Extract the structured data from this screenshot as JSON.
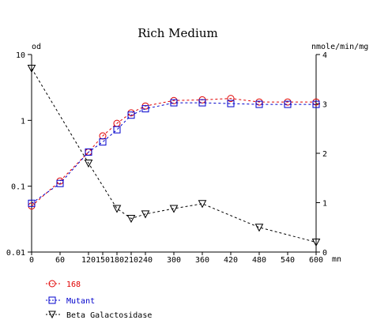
{
  "chart_data": {
    "type": "line",
    "title": "Rich Medium",
    "left_axis_unit": "od",
    "right_axis_unit": "nmole/min/mg",
    "x_unit": "mn",
    "x_ticks": [
      "0",
      "60",
      "120",
      "150",
      "180",
      "210",
      "240",
      "300",
      "360",
      "420",
      "480",
      "540",
      "600"
    ],
    "xlim": [
      0,
      600
    ],
    "left_ticks": [
      "0.01",
      "0.1",
      "1",
      "10"
    ],
    "left_scale": "log",
    "ylim_left": [
      0.01,
      10
    ],
    "right_ticks": [
      "0",
      "1",
      "2",
      "3",
      "4"
    ],
    "ylim_right": [
      0,
      4
    ],
    "grid": false,
    "legend_position": "bottom-left",
    "series": [
      {
        "name": "168",
        "axis": "left",
        "color": "#e00000",
        "marker": "circle",
        "x": [
          0,
          60,
          120,
          150,
          180,
          210,
          240,
          300,
          360,
          420,
          480,
          540,
          600
        ],
        "y": [
          0.05,
          0.12,
          0.33,
          0.58,
          0.9,
          1.3,
          1.65,
          2.0,
          2.05,
          2.15,
          1.9,
          1.9,
          1.9
        ]
      },
      {
        "name": "Mutant",
        "axis": "left",
        "color": "#0000cc",
        "marker": "square",
        "x": [
          0,
          60,
          120,
          150,
          180,
          210,
          240,
          300,
          360,
          420,
          480,
          540,
          600
        ],
        "y": [
          0.055,
          0.11,
          0.33,
          0.47,
          0.72,
          1.2,
          1.5,
          1.85,
          1.85,
          1.8,
          1.75,
          1.75,
          1.75
        ]
      },
      {
        "name": "Beta Galactosidase",
        "axis": "right",
        "color": "#000000",
        "marker": "triangle-down",
        "x": [
          0,
          120,
          180,
          210,
          240,
          300,
          360,
          480,
          600
        ],
        "y": [
          3.72,
          1.8,
          0.88,
          0.68,
          0.77,
          0.88,
          0.98,
          0.5,
          0.2
        ]
      }
    ]
  }
}
